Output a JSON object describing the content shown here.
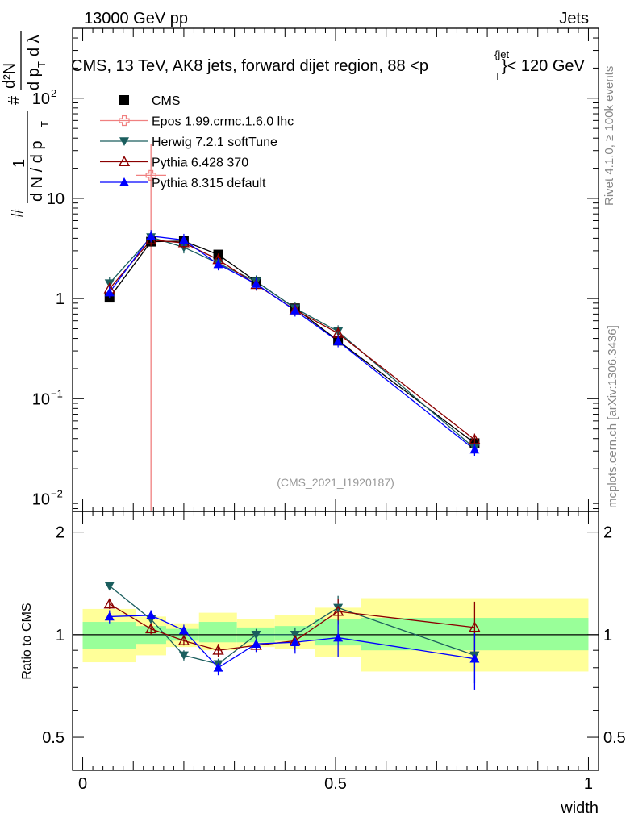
{
  "header": {
    "left": "13000 GeV pp",
    "right": "Jets",
    "title_main": "CMS, 13 TeV, AK8 jets, forward dijet region, 88 <p",
    "title_sup": "{jet",
    "title_sub": "T",
    "title_end": "}< 120 GeV"
  },
  "side_labels": {
    "rivet": "Rivet 4.1.0, ≥ 100k events",
    "mcplots": "mcplots.cern.ch [arXiv:1306.3436]"
  },
  "watermark": "(CMS_2021_I1920187)",
  "axes": {
    "xlabel": "width",
    "ratio_ylabel": "Ratio to CMS",
    "main_ylabel": {
      "hash": "#",
      "one": "1",
      "dN": "d N / d p",
      "T": "T",
      "d2N": "d²N",
      "dp": "d p",
      "dlambda": "d λ"
    },
    "main_yticks": [
      {
        "v": 0.01,
        "base": "10",
        "exp": "−2"
      },
      {
        "v": 0.1,
        "base": "10",
        "exp": "−1"
      },
      {
        "v": 1,
        "base": "1",
        "exp": ""
      },
      {
        "v": 10,
        "base": "10",
        "exp": ""
      },
      {
        "v": 100,
        "base": "10",
        "exp": "2"
      }
    ],
    "ratio_yticks": [
      {
        "v": 0.5,
        "label": "0.5"
      },
      {
        "v": 1,
        "label": "1"
      },
      {
        "v": 2,
        "label": "2"
      }
    ],
    "xticks": [
      {
        "v": 0,
        "label": "0"
      },
      {
        "v": 0.5,
        "label": "0.5"
      },
      {
        "v": 1,
        "label": "1"
      }
    ]
  },
  "chart_data": {
    "type": "line",
    "title": "CMS, 13 TeV, AK8 jets, forward dijet region, 88 < pT jet < 120 GeV",
    "xlabel": "width",
    "ylabel": "1/(dN/dpT) d²N/(dpT dλ)",
    "xlim": [
      -0.02,
      1.02
    ],
    "ylim": [
      0.0075,
      500
    ],
    "yscale": "log",
    "ratio_ylim": [
      0.4,
      2.3
    ],
    "ratio_yscale": "log",
    "bins": [
      {
        "lo": 0.0,
        "hi": 0.105
      },
      {
        "lo": 0.105,
        "hi": 0.165
      },
      {
        "lo": 0.165,
        "hi": 0.23
      },
      {
        "lo": 0.23,
        "hi": 0.305
      },
      {
        "lo": 0.305,
        "hi": 0.38
      },
      {
        "lo": 0.38,
        "hi": 0.46
      },
      {
        "lo": 0.46,
        "hi": 0.55
      },
      {
        "lo": 0.55,
        "hi": 1.0
      }
    ],
    "band_inner": [
      [
        0.91,
        1.09
      ],
      [
        0.94,
        1.06
      ],
      [
        0.96,
        1.04
      ],
      [
        0.95,
        1.09
      ],
      [
        0.95,
        1.05
      ],
      [
        0.96,
        1.06
      ],
      [
        0.93,
        1.11
      ],
      [
        0.9,
        1.12
      ]
    ],
    "band_outer": [
      [
        0.83,
        1.19
      ],
      [
        0.87,
        1.13
      ],
      [
        0.92,
        1.08
      ],
      [
        0.9,
        1.16
      ],
      [
        0.92,
        1.11
      ],
      [
        0.91,
        1.14
      ],
      [
        0.86,
        1.2
      ],
      [
        0.78,
        1.28
      ]
    ],
    "legend": [
      "CMS",
      "Epos 1.99.crmc.1.6.0 lhc",
      "Herwig 7.2.1 softTune",
      "Pythia 6.428 370",
      "Pythia 8.315 default"
    ],
    "series": [
      {
        "name": "CMS",
        "color": "#000000",
        "marker": "square",
        "x": [
          0.053,
          0.135,
          0.2,
          0.268,
          0.343,
          0.42,
          0.505,
          0.775
        ],
        "y": [
          1.02,
          3.7,
          3.75,
          2.75,
          1.48,
          0.8,
          0.38,
          0.036
        ]
      },
      {
        "name": "Epos 1.99.crmc.1.6.0 lhc",
        "color": "#f08080",
        "marker": "open-cross",
        "x": [
          0.135
        ],
        "y": [
          17
        ],
        "yerr_hi": [
          35
        ],
        "yerr_lo": [
          0.0075
        ],
        "xerr": [
          0.03
        ]
      },
      {
        "name": "Herwig 7.2.1 softTune",
        "color": "#1b5e5e",
        "marker": "triangle-down",
        "x": [
          0.053,
          0.135,
          0.2,
          0.268,
          0.343,
          0.42,
          0.505,
          0.775
        ],
        "y": [
          1.42,
          4.1,
          3.25,
          2.25,
          1.48,
          0.8,
          0.47,
          0.032
        ],
        "ratio": [
          1.39,
          1.11,
          0.87,
          0.82,
          1.0,
          1.0,
          1.2,
          0.87
        ],
        "ratio_err": [
          0.04,
          0.03,
          0.03,
          0.03,
          0.04,
          0.05,
          0.1,
          0.15
        ]
      },
      {
        "name": "Pythia 6.428 370",
        "color": "#8b0000",
        "marker": "triangle-open",
        "x": [
          0.053,
          0.135,
          0.2,
          0.268,
          0.343,
          0.42,
          0.505,
          0.775
        ],
        "y": [
          1.25,
          3.85,
          3.6,
          2.45,
          1.38,
          0.77,
          0.45,
          0.039
        ],
        "ratio": [
          1.23,
          1.04,
          0.96,
          0.9,
          0.93,
          0.96,
          1.17,
          1.05
        ],
        "ratio_err": [
          0.04,
          0.04,
          0.03,
          0.04,
          0.04,
          0.06,
          0.1,
          0.2
        ]
      },
      {
        "name": "Pythia 8.315 default",
        "color": "#0000ff",
        "marker": "triangle-up",
        "x": [
          0.053,
          0.135,
          0.2,
          0.268,
          0.343,
          0.42,
          0.505,
          0.775
        ],
        "y": [
          1.15,
          4.2,
          3.85,
          2.2,
          1.4,
          0.76,
          0.375,
          0.031
        ],
        "ratio": [
          1.13,
          1.14,
          1.03,
          0.8,
          0.94,
          0.95,
          0.98,
          0.85
        ],
        "ratio_err": [
          0.05,
          0.04,
          0.04,
          0.04,
          0.05,
          0.07,
          0.12,
          0.16
        ]
      }
    ]
  }
}
